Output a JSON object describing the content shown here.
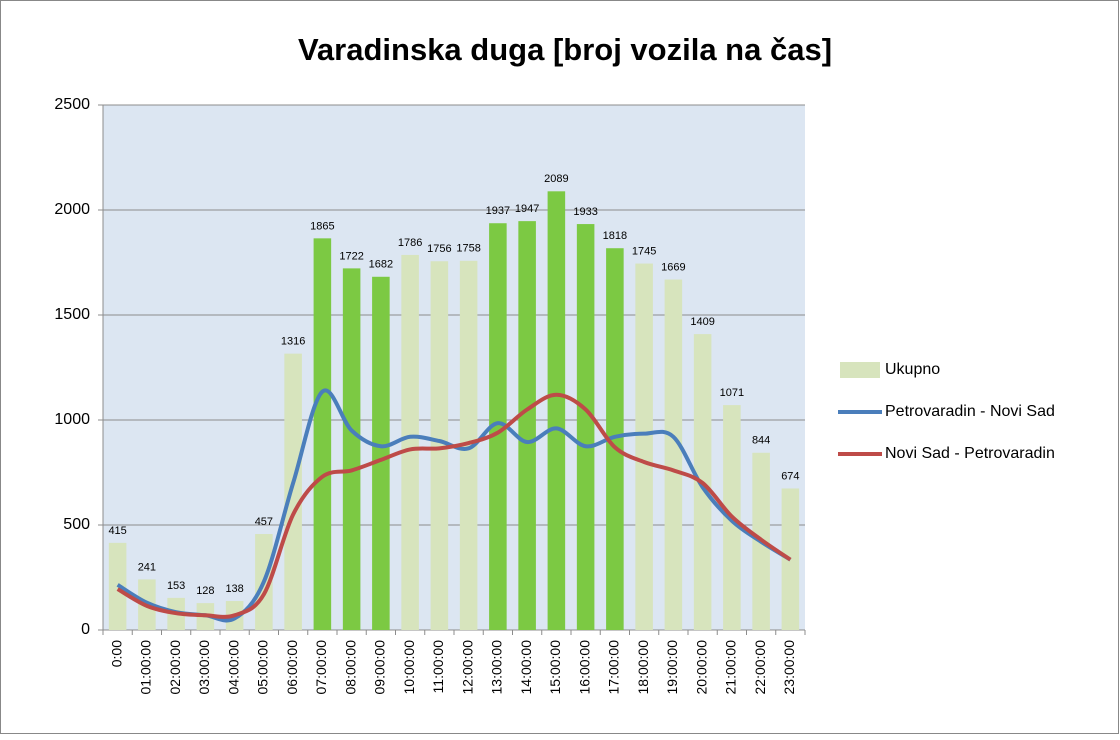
{
  "chart_data": {
    "type": "bar_line",
    "title": "Varadinska duga [broj vozila na čas]",
    "categories": [
      "0:00",
      "01:00:00",
      "02:00:00",
      "03:00:00",
      "04:00:00",
      "05:00:00",
      "06:00:00",
      "07:00:00",
      "08:00:00",
      "09:00:00",
      "10:00:00",
      "11:00:00",
      "12:00:00",
      "13:00:00",
      "14:00:00",
      "15:00:00",
      "16:00:00",
      "17:00:00",
      "18:00:00",
      "19:00:00",
      "20:00:00",
      "21:00:00",
      "22:00:00",
      "23:00:00"
    ],
    "series": [
      {
        "name": "Ukupno",
        "type": "bar",
        "color": "#d7e4bd",
        "colors": [
          "#d7e4bd",
          "#d7e4bd",
          "#d7e4bd",
          "#d7e4bd",
          "#d7e4bd",
          "#d7e4bd",
          "#d7e4bd",
          "#7cc943",
          "#7cc943",
          "#7cc943",
          "#d7e4bd",
          "#d7e4bd",
          "#d7e4bd",
          "#7cc943",
          "#7cc943",
          "#7cc943",
          "#7cc943",
          "#7cc943",
          "#d7e4bd",
          "#d7e4bd",
          "#d7e4bd",
          "#d7e4bd",
          "#d7e4bd",
          "#d7e4bd"
        ],
        "values": [
          415,
          241,
          153,
          128,
          138,
          457,
          1316,
          1865,
          1722,
          1682,
          1786,
          1756,
          1758,
          1937,
          1947,
          2089,
          1933,
          1818,
          1745,
          1669,
          1409,
          1071,
          844,
          674
        ]
      },
      {
        "name": "Petrovaradin - Novi Sad",
        "type": "line",
        "color": "#4a7ebb",
        "values": [
          215,
          130,
          85,
          70,
          55,
          230,
          700,
          1135,
          950,
          875,
          920,
          900,
          865,
          985,
          895,
          960,
          875,
          920,
          935,
          920,
          680,
          520,
          420,
          335
        ]
      },
      {
        "name": "Novi Sad - Petrovaradin",
        "type": "line",
        "color": "#be4b48",
        "values": [
          195,
          115,
          80,
          70,
          70,
          170,
          550,
          730,
          760,
          810,
          860,
          865,
          890,
          940,
          1050,
          1120,
          1050,
          870,
          800,
          760,
          700,
          540,
          430,
          335
        ]
      }
    ],
    "ylim": [
      0,
      2500
    ],
    "yticks": [
      0,
      500,
      1000,
      1500,
      2000,
      2500
    ],
    "grid": true,
    "legend": "right"
  }
}
